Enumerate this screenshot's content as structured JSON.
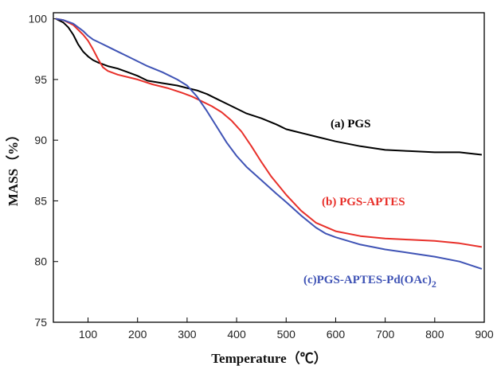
{
  "chart_data": {
    "type": "line",
    "title": "",
    "xlabel": "Temperature（℃）",
    "ylabel": "MASS（%）",
    "xlim": [
      30,
      900
    ],
    "ylim": [
      75,
      100.5
    ],
    "xticks": [
      100,
      200,
      300,
      400,
      500,
      600,
      700,
      800,
      900
    ],
    "yticks": [
      75,
      80,
      85,
      90,
      95,
      100
    ],
    "grid": false,
    "legend": "none",
    "series": [
      {
        "name": "(a) PGS",
        "color": "#000000",
        "x": [
          35,
          50,
          60,
          70,
          80,
          90,
          100,
          110,
          120,
          140,
          160,
          180,
          200,
          220,
          250,
          280,
          300,
          320,
          340,
          360,
          380,
          400,
          420,
          450,
          480,
          500,
          530,
          560,
          600,
          650,
          700,
          750,
          800,
          850,
          895
        ],
        "y": [
          100,
          99.7,
          99.3,
          98.7,
          97.9,
          97.3,
          96.9,
          96.6,
          96.4,
          96.1,
          95.9,
          95.6,
          95.3,
          94.9,
          94.7,
          94.5,
          94.3,
          94.1,
          93.8,
          93.4,
          93.0,
          92.6,
          92.2,
          91.8,
          91.3,
          90.9,
          90.6,
          90.3,
          89.9,
          89.5,
          89.2,
          89.1,
          89.0,
          89.0,
          88.8
        ]
      },
      {
        "name": "(b) PGS-APTES",
        "color": "#e8302a",
        "x": [
          35,
          50,
          70,
          90,
          100,
          110,
          120,
          130,
          140,
          160,
          180,
          200,
          230,
          260,
          290,
          310,
          330,
          350,
          370,
          390,
          410,
          430,
          450,
          470,
          500,
          530,
          560,
          600,
          650,
          700,
          750,
          800,
          850,
          895
        ],
        "y": [
          100,
          99.9,
          99.5,
          98.7,
          98.2,
          97.5,
          96.7,
          96.0,
          95.7,
          95.4,
          95.2,
          95.0,
          94.6,
          94.3,
          93.9,
          93.6,
          93.2,
          92.8,
          92.3,
          91.6,
          90.7,
          89.5,
          88.2,
          87.0,
          85.5,
          84.2,
          83.2,
          82.5,
          82.1,
          81.9,
          81.8,
          81.7,
          81.5,
          81.2
        ]
      },
      {
        "name": "(c)PGS-APTES-Pd(OAc)",
        "name_subscript": "2",
        "color": "#3f53b5",
        "x": [
          35,
          50,
          70,
          90,
          100,
          110,
          120,
          140,
          160,
          180,
          200,
          220,
          250,
          280,
          300,
          320,
          340,
          360,
          380,
          400,
          420,
          450,
          480,
          500,
          530,
          560,
          580,
          600,
          650,
          700,
          750,
          800,
          850,
          895
        ],
        "y": [
          100,
          99.9,
          99.6,
          99.0,
          98.6,
          98.3,
          98.1,
          97.7,
          97.3,
          96.9,
          96.5,
          96.1,
          95.6,
          95.0,
          94.5,
          93.6,
          92.4,
          91.1,
          89.8,
          88.7,
          87.8,
          86.7,
          85.6,
          84.9,
          83.8,
          82.8,
          82.3,
          82.0,
          81.4,
          81.0,
          80.7,
          80.4,
          80.0,
          79.4
        ]
      }
    ]
  }
}
